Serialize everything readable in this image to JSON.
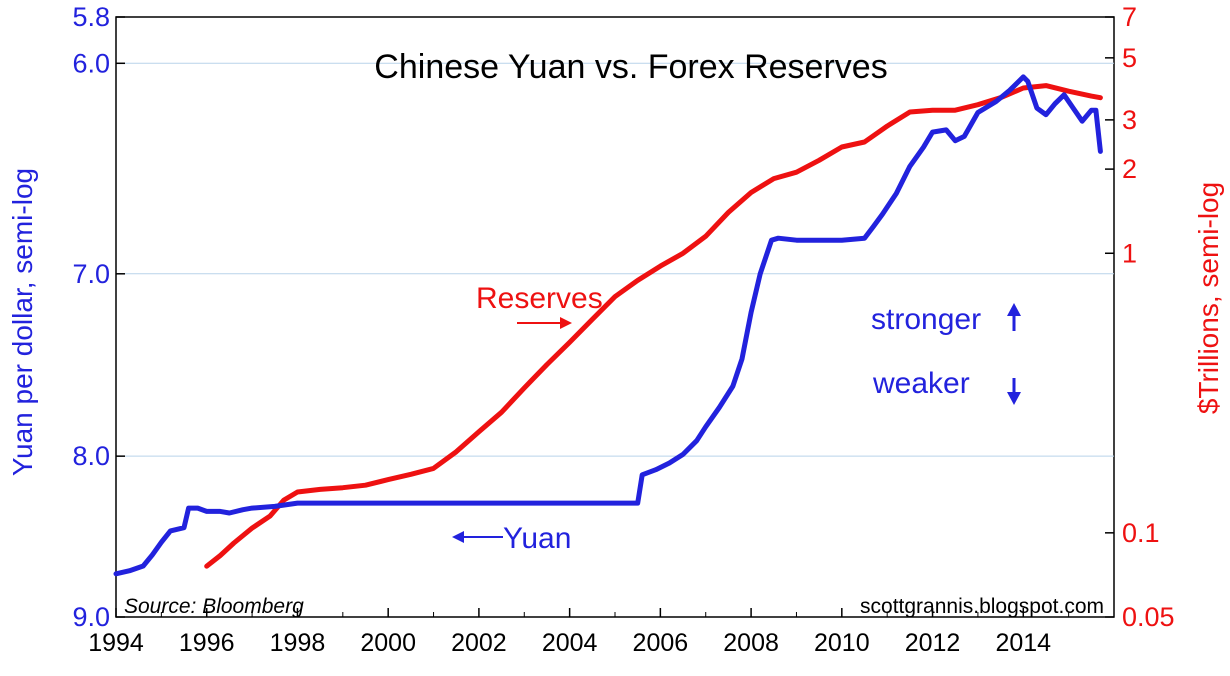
{
  "chart_data": {
    "type": "line",
    "title": "Chinese Yuan vs. Forex Reserves",
    "ylabel_left": "Yuan per dollar, semi-log",
    "ylabel_right": "$Trillions, semi-log",
    "source": "Source:  Bloomberg",
    "website": "scottgrannis.blogspot.com",
    "x_ticks": [
      "1994",
      "1996",
      "1998",
      "2000",
      "2002",
      "2004",
      "2006",
      "2008",
      "2010",
      "2012",
      "2014"
    ],
    "left_axis": {
      "scale": "log",
      "inverted": true,
      "range": [
        5.8,
        9.0
      ],
      "ticks": [
        {
          "value": 5.8,
          "label": "5.8"
        },
        {
          "value": 6.0,
          "label": "6.0"
        },
        {
          "value": 7.0,
          "label": "7.0"
        },
        {
          "value": 8.0,
          "label": "8.0"
        },
        {
          "value": 9.0,
          "label": "9.0"
        }
      ]
    },
    "right_axis": {
      "scale": "log",
      "range": [
        0.05,
        7
      ],
      "ticks": [
        {
          "value": 7,
          "label": "7"
        },
        {
          "value": 5,
          "label": "5"
        },
        {
          "value": 3,
          "label": "3"
        },
        {
          "value": 2,
          "label": "2"
        },
        {
          "value": 1,
          "label": "1"
        },
        {
          "value": 0.1,
          "label": "0.1"
        },
        {
          "value": 0.05,
          "label": "0.05"
        }
      ]
    },
    "grid": "horizontal, left-axis ticks",
    "series": [
      {
        "name": "Yuan",
        "axis": "left",
        "color": "#2222dd",
        "points": [
          [
            1994.0,
            8.72
          ],
          [
            1994.3,
            8.7
          ],
          [
            1994.6,
            8.67
          ],
          [
            1994.8,
            8.6
          ],
          [
            1995.0,
            8.52
          ],
          [
            1995.2,
            8.45
          ],
          [
            1995.5,
            8.43
          ],
          [
            1995.6,
            8.31
          ],
          [
            1995.8,
            8.31
          ],
          [
            1996.0,
            8.33
          ],
          [
            1996.3,
            8.33
          ],
          [
            1996.5,
            8.34
          ],
          [
            1996.8,
            8.32
          ],
          [
            1997.0,
            8.31
          ],
          [
            1997.5,
            8.3
          ],
          [
            1998.0,
            8.28
          ],
          [
            2000.0,
            8.28
          ],
          [
            2002.0,
            8.28
          ],
          [
            2004.0,
            8.28
          ],
          [
            2005.5,
            8.28
          ],
          [
            2005.6,
            8.11
          ],
          [
            2005.9,
            8.08
          ],
          [
            2006.2,
            8.04
          ],
          [
            2006.5,
            7.99
          ],
          [
            2006.8,
            7.91
          ],
          [
            2007.0,
            7.83
          ],
          [
            2007.3,
            7.72
          ],
          [
            2007.6,
            7.6
          ],
          [
            2007.8,
            7.45
          ],
          [
            2008.0,
            7.2
          ],
          [
            2008.2,
            7.0
          ],
          [
            2008.45,
            6.83
          ],
          [
            2008.6,
            6.82
          ],
          [
            2009.0,
            6.83
          ],
          [
            2009.5,
            6.83
          ],
          [
            2010.0,
            6.83
          ],
          [
            2010.5,
            6.82
          ],
          [
            2010.7,
            6.76
          ],
          [
            2010.9,
            6.7
          ],
          [
            2011.2,
            6.6
          ],
          [
            2011.5,
            6.47
          ],
          [
            2011.8,
            6.38
          ],
          [
            2012.0,
            6.31
          ],
          [
            2012.3,
            6.3
          ],
          [
            2012.5,
            6.35
          ],
          [
            2012.7,
            6.33
          ],
          [
            2013.0,
            6.22
          ],
          [
            2013.4,
            6.17
          ],
          [
            2013.7,
            6.12
          ],
          [
            2014.0,
            6.06
          ],
          [
            2014.1,
            6.08
          ],
          [
            2014.3,
            6.2
          ],
          [
            2014.5,
            6.23
          ],
          [
            2014.7,
            6.18
          ],
          [
            2014.9,
            6.14
          ],
          [
            2015.1,
            6.2
          ],
          [
            2015.3,
            6.26
          ],
          [
            2015.5,
            6.21
          ],
          [
            2015.6,
            6.21
          ],
          [
            2015.7,
            6.4
          ]
        ]
      },
      {
        "name": "Reserves",
        "axis": "right",
        "color": "#ee1111",
        "points": [
          [
            1996.0,
            0.076
          ],
          [
            1996.3,
            0.083
          ],
          [
            1996.6,
            0.092
          ],
          [
            1997.0,
            0.104
          ],
          [
            1997.4,
            0.115
          ],
          [
            1997.7,
            0.131
          ],
          [
            1998.0,
            0.14
          ],
          [
            1998.5,
            0.143
          ],
          [
            1999.0,
            0.145
          ],
          [
            1999.5,
            0.148
          ],
          [
            2000.0,
            0.155
          ],
          [
            2000.5,
            0.162
          ],
          [
            2001.0,
            0.17
          ],
          [
            2001.5,
            0.195
          ],
          [
            2002.0,
            0.23
          ],
          [
            2002.5,
            0.27
          ],
          [
            2003.0,
            0.33
          ],
          [
            2003.5,
            0.4
          ],
          [
            2004.0,
            0.48
          ],
          [
            2004.5,
            0.58
          ],
          [
            2005.0,
            0.7
          ],
          [
            2005.5,
            0.8
          ],
          [
            2006.0,
            0.9
          ],
          [
            2006.5,
            1.0
          ],
          [
            2007.0,
            1.15
          ],
          [
            2007.5,
            1.4
          ],
          [
            2008.0,
            1.65
          ],
          [
            2008.5,
            1.85
          ],
          [
            2009.0,
            1.95
          ],
          [
            2009.5,
            2.15
          ],
          [
            2010.0,
            2.4
          ],
          [
            2010.5,
            2.5
          ],
          [
            2011.0,
            2.85
          ],
          [
            2011.5,
            3.2
          ],
          [
            2012.0,
            3.25
          ],
          [
            2012.5,
            3.25
          ],
          [
            2013.0,
            3.4
          ],
          [
            2013.5,
            3.6
          ],
          [
            2014.0,
            3.9
          ],
          [
            2014.5,
            3.98
          ],
          [
            2015.0,
            3.8
          ],
          [
            2015.5,
            3.65
          ],
          [
            2015.7,
            3.6
          ]
        ]
      }
    ],
    "annotations": {
      "reserves_label": "Reserves",
      "yuan_label": "Yuan",
      "stronger": "stronger",
      "weaker": "weaker"
    }
  }
}
